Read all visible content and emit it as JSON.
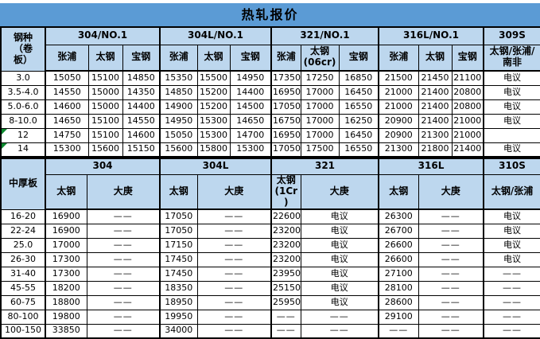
{
  "title": "热轧报价",
  "negotiable_label": "电议",
  "dash_label": "——",
  "colors": {
    "title_bg": "#5b9bd5",
    "header_bg": "#bdd7ee",
    "border": "#000000",
    "flag_triangle": "#0c8a2f"
  },
  "coil_section": {
    "row_label_header": "钢种\n（卷\n板）",
    "groups": [
      {
        "label": "304/NO.1",
        "mills": [
          "张浦",
          "太钢",
          "宝钢"
        ]
      },
      {
        "label": "304L/NO.1",
        "mills": [
          "张浦",
          "太钢",
          "宝钢"
        ]
      },
      {
        "label": "321/NO.1",
        "mills": [
          "张浦",
          "太钢\n(06cr)",
          "宝钢"
        ]
      },
      {
        "label": "316L/NO.1",
        "mills": [
          "张浦",
          "太钢",
          "宝钢"
        ]
      },
      {
        "label": "309S",
        "mills": [
          "太钢/张浦/\n南非"
        ]
      }
    ],
    "rows": [
      {
        "label": "3.0",
        "flag": false,
        "values": [
          "15050",
          "15100",
          "14850",
          "15350",
          "15500",
          "14950",
          "17350",
          "17250",
          "16850",
          "21500",
          "21450",
          "21100",
          "电议"
        ]
      },
      {
        "label": "3.5-4.0",
        "flag": false,
        "values": [
          "14550",
          "15000",
          "14350",
          "14850",
          "15200",
          "14400",
          "16950",
          "17000",
          "16450",
          "21000",
          "21400",
          "20800",
          "电议"
        ]
      },
      {
        "label": "5.0-6.0",
        "flag": false,
        "values": [
          "14600",
          "15000",
          "14400",
          "14900",
          "15200",
          "14500",
          "17050",
          "17000",
          "16550",
          "21000",
          "21400",
          "20800",
          "电议"
        ]
      },
      {
        "label": "8-10.0",
        "flag": false,
        "values": [
          "14650",
          "15100",
          "14550",
          "14950",
          "15300",
          "14650",
          "16750",
          "17000",
          "16250",
          "20900",
          "21400",
          "21000",
          "电议"
        ]
      },
      {
        "label": "12",
        "flag": true,
        "values": [
          "14750",
          "15100",
          "14600",
          "15050",
          "15300",
          "14700",
          "16950",
          "17000",
          "16450",
          "20900",
          "21300",
          "21000",
          ""
        ]
      },
      {
        "label": "14",
        "flag": true,
        "values": [
          "15300",
          "15600",
          "15150",
          "15600",
          "15800",
          "15300",
          "17050",
          "17500",
          "16550",
          "21300",
          "21800",
          "21400",
          "电议"
        ]
      }
    ]
  },
  "plate_section": {
    "row_label_header": "中厚板",
    "groups": [
      {
        "label": "304",
        "mills": [
          "太钢",
          "大庚"
        ]
      },
      {
        "label": "304L",
        "mills": [
          "太钢",
          "大庚"
        ]
      },
      {
        "label": "321",
        "mills": [
          "太钢\n(1Cr\n)",
          "大庚"
        ]
      },
      {
        "label": "316L",
        "mills": [
          "太钢",
          "大庚"
        ]
      },
      {
        "label": "310S",
        "mills": [
          "太钢/张浦"
        ]
      }
    ],
    "rows": [
      {
        "label": "16-20",
        "flag": false,
        "values": [
          "16900",
          "——",
          "17050",
          "——",
          "22600",
          "电议",
          "26300",
          "——",
          "电议"
        ]
      },
      {
        "label": "22-24",
        "flag": false,
        "values": [
          "16900",
          "——",
          "17050",
          "——",
          "23200",
          "电议",
          "26700",
          "——",
          "电议"
        ]
      },
      {
        "label": "25.0",
        "flag": false,
        "values": [
          "17000",
          "——",
          "17150",
          "——",
          "23200",
          "电议",
          "26600",
          "——",
          "电议"
        ]
      },
      {
        "label": "26-30",
        "flag": false,
        "values": [
          "17300",
          "——",
          "17450",
          "——",
          "23200",
          "电议",
          "26600",
          "——",
          "电议"
        ]
      },
      {
        "label": "31-40",
        "flag": false,
        "values": [
          "17300",
          "——",
          "17450",
          "——",
          "23950",
          "电议",
          "27100",
          "——",
          "——"
        ]
      },
      {
        "label": "45-55",
        "flag": false,
        "values": [
          "18200",
          "——",
          "18350",
          "——",
          "25150",
          "电议",
          "28100",
          "——",
          "——"
        ]
      },
      {
        "label": "60-75",
        "flag": false,
        "values": [
          "18800",
          "——",
          "18950",
          "——",
          "25950",
          "电议",
          "28600",
          "——",
          "——"
        ]
      },
      {
        "label": "80-100",
        "flag": false,
        "values": [
          "19800",
          "——",
          "19950",
          "——",
          "——",
          "——",
          "29100",
          "——",
          "——"
        ]
      },
      {
        "label": "100-150",
        "flag": false,
        "values": [
          "33850",
          "——",
          "34000",
          "——",
          "——",
          "——",
          "——",
          "——",
          "——"
        ]
      }
    ]
  }
}
